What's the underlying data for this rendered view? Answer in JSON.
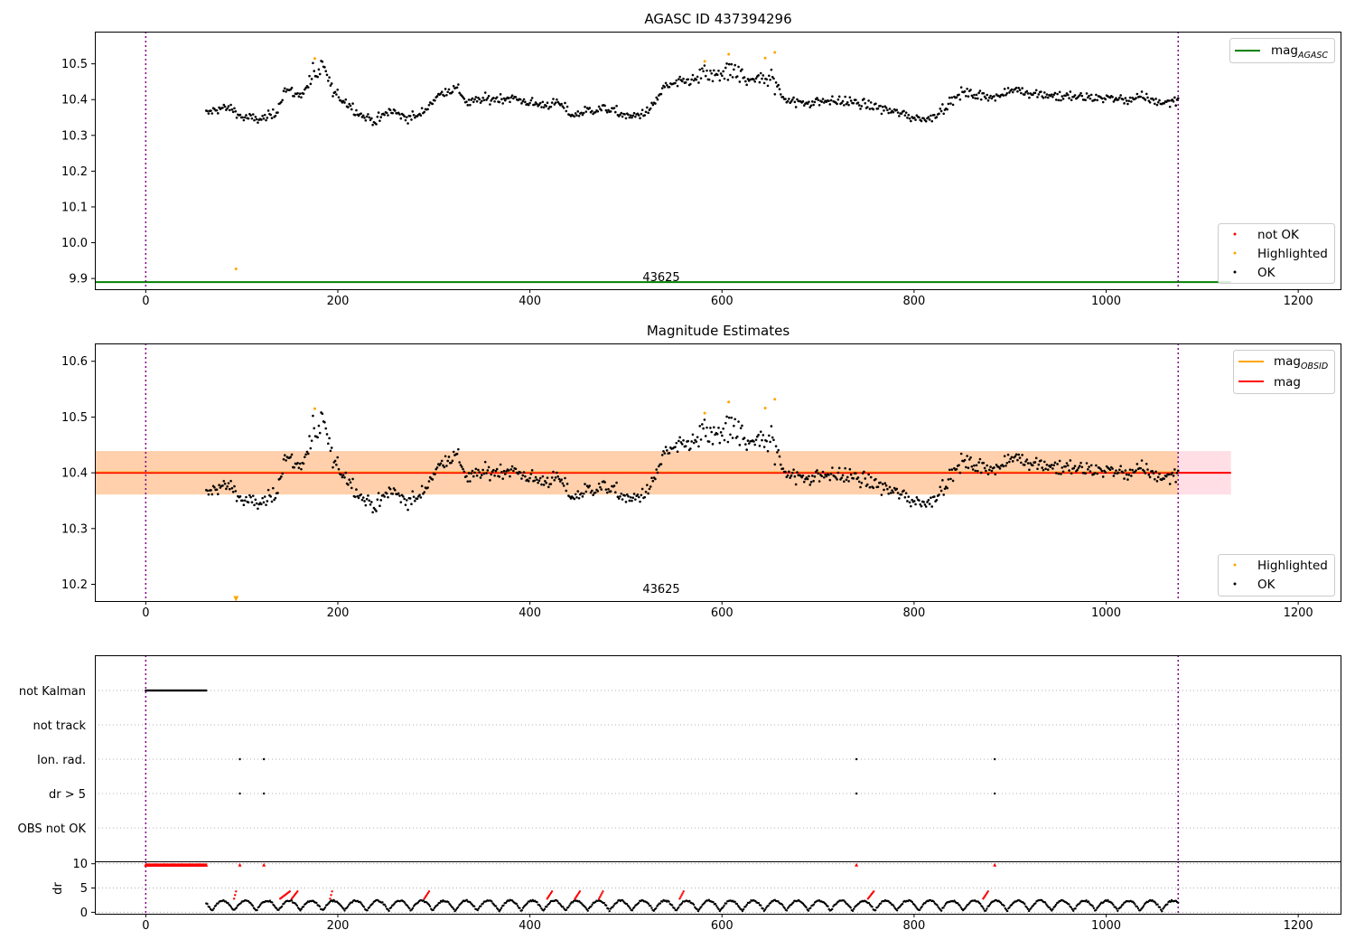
{
  "chart_data": [
    {
      "type": "scatter",
      "title": "AGASC ID 437394296",
      "xlim": [
        -53,
        1245
      ],
      "ylim": [
        9.87,
        10.59
      ],
      "xticks": [
        0,
        200,
        400,
        600,
        800,
        1000,
        1200
      ],
      "yticks": [
        9.9,
        10.0,
        10.1,
        10.2,
        10.3,
        10.4,
        10.5
      ],
      "ytick_labels": [
        "9.9",
        "10.0",
        "10.1",
        "10.2",
        "10.3",
        "10.4",
        "10.5"
      ],
      "vlines": [
        0,
        1075
      ],
      "vline_color": "#800080",
      "hline": {
        "name": "mag",
        "subscript": "AGASC",
        "y": 9.89,
        "x_range": [
          -53,
          1130
        ],
        "color": "#008000"
      },
      "obsid_label": {
        "text": "43625",
        "x": 537,
        "y": 9.9
      },
      "series": [
        {
          "name": "not OK",
          "color": "#ff0000",
          "points": []
        },
        {
          "name": "Highlighted",
          "color": "#ffa500",
          "points": [
            [
              94,
              9.927
            ],
            [
              176,
              10.515
            ],
            [
              582,
              10.507
            ],
            [
              607,
              10.527
            ],
            [
              645,
              10.516
            ],
            [
              655,
              10.532
            ]
          ]
        },
        {
          "name": "OK",
          "color": "#000000",
          "trend": [
            [
              63,
              10.36
            ],
            [
              75,
              10.375
            ],
            [
              90,
              10.375
            ],
            [
              100,
              10.35
            ],
            [
              120,
              10.345
            ],
            [
              135,
              10.36
            ],
            [
              145,
              10.43
            ],
            [
              160,
              10.41
            ],
            [
              175,
              10.46
            ],
            [
              188,
              10.475
            ],
            [
              195,
              10.42
            ],
            [
              210,
              10.39
            ],
            [
              225,
              10.355
            ],
            [
              240,
              10.34
            ],
            [
              255,
              10.37
            ],
            [
              270,
              10.35
            ],
            [
              285,
              10.355
            ],
            [
              300,
              10.4
            ],
            [
              312,
              10.425
            ],
            [
              325,
              10.43
            ],
            [
              335,
              10.39
            ],
            [
              350,
              10.4
            ],
            [
              380,
              10.405
            ],
            [
              410,
              10.385
            ],
            [
              430,
              10.39
            ],
            [
              445,
              10.355
            ],
            [
              460,
              10.37
            ],
            [
              480,
              10.375
            ],
            [
              505,
              10.35
            ],
            [
              525,
              10.37
            ],
            [
              540,
              10.435
            ],
            [
              560,
              10.45
            ],
            [
              580,
              10.46
            ],
            [
              610,
              10.47
            ],
            [
              630,
              10.455
            ],
            [
              650,
              10.455
            ],
            [
              662,
              10.41
            ],
            [
              680,
              10.39
            ],
            [
              700,
              10.395
            ],
            [
              730,
              10.395
            ],
            [
              760,
              10.38
            ],
            [
              780,
              10.365
            ],
            [
              800,
              10.35
            ],
            [
              815,
              10.345
            ],
            [
              830,
              10.375
            ],
            [
              850,
              10.42
            ],
            [
              870,
              10.41
            ],
            [
              890,
              10.41
            ],
            [
              905,
              10.43
            ],
            [
              920,
              10.42
            ],
            [
              950,
              10.41
            ],
            [
              980,
              10.405
            ],
            [
              1000,
              10.405
            ],
            [
              1020,
              10.4
            ],
            [
              1040,
              10.405
            ],
            [
              1060,
              10.39
            ],
            [
              1075,
              10.4
            ]
          ],
          "x_range": [
            63,
            1075
          ],
          "n": 830,
          "scatter": 0.021
        }
      ],
      "legends": [
        {
          "position": "upper-right",
          "entries": [
            {
              "label": "mag",
              "subscript": "AGASC",
              "kind": "line",
              "color": "#008000"
            }
          ]
        },
        {
          "position": "lower-right",
          "entries": [
            {
              "label": "not OK",
              "kind": "dot",
              "color": "#ff0000"
            },
            {
              "label": "Highlighted",
              "kind": "dot",
              "color": "#ffa500"
            },
            {
              "label": "OK",
              "kind": "dot",
              "color": "#000000"
            }
          ]
        }
      ]
    },
    {
      "type": "scatter",
      "title": "Magnitude Estimates",
      "xlim": [
        -53,
        1245
      ],
      "ylim": [
        10.17,
        10.632
      ],
      "xticks": [
        0,
        200,
        400,
        600,
        800,
        1000,
        1200
      ],
      "yticks": [
        10.2,
        10.3,
        10.4,
        10.5,
        10.6
      ],
      "ytick_labels": [
        "10.2",
        "10.3",
        "10.4",
        "10.5",
        "10.6"
      ],
      "vlines": [
        0,
        1075
      ],
      "vline_color": "#800080",
      "hline": {
        "name": "mag",
        "y": 10.4,
        "x_range": [
          -53,
          1130
        ],
        "color": "#ff0000"
      },
      "bands": [
        {
          "x_range": [
            -53,
            1130
          ],
          "y_range": [
            10.361,
            10.439
          ],
          "color": "#ffc0cb",
          "opacity": 0.5
        },
        {
          "x_range": [
            -53,
            1075
          ],
          "y_range": [
            10.361,
            10.439
          ],
          "color": "#ffa500",
          "opacity": 0.25
        }
      ],
      "obsid_line": {
        "name": "mag",
        "subscript": "OBSID",
        "y": 10.4,
        "x_range": [
          -53,
          1075
        ],
        "color": "#ffa500"
      },
      "obsid_label": {
        "text": "43625",
        "x": 537,
        "y": 10.186
      },
      "series": [
        {
          "name": "Highlighted",
          "color": "#ffa500",
          "points": [
            [
              176,
              10.515
            ],
            [
              582,
              10.507
            ],
            [
              607,
              10.527
            ],
            [
              645,
              10.516
            ],
            [
              655,
              10.532
            ]
          ],
          "clipped_marker": {
            "x": 94,
            "y": 10.174
          }
        },
        {
          "name": "OK",
          "color": "#000000",
          "same_as_panel": 0
        }
      ],
      "legends": [
        {
          "position": "upper-right",
          "entries": [
            {
              "label": "mag",
              "subscript": "OBSID",
              "kind": "line",
              "color": "#ffa500"
            },
            {
              "label": "mag",
              "kind": "line",
              "color": "#ff0000"
            }
          ]
        },
        {
          "position": "lower-right",
          "entries": [
            {
              "label": "Highlighted",
              "kind": "dot",
              "color": "#ffa500"
            },
            {
              "label": "OK",
              "kind": "dot",
              "color": "#000000"
            }
          ]
        }
      ]
    },
    {
      "type": "scatter",
      "title": "",
      "xlim": [
        -53,
        1245
      ],
      "categories": [
        "not Kalman",
        "not track",
        "Ion. rad.",
        "dr > 5",
        "OBS not OK"
      ],
      "vlines": [
        0,
        1075
      ],
      "vline_color": "#800080",
      "flags": [
        {
          "category": "not Kalman",
          "x_range": [
            0,
            63
          ],
          "n": 60
        },
        {
          "category": "not track",
          "x": []
        },
        {
          "category": "Ion. rad.",
          "x": [
            98,
            123,
            740,
            884
          ]
        },
        {
          "category": "dr > 5",
          "x": [
            98,
            123,
            740,
            884
          ]
        },
        {
          "category": "OBS not OK",
          "x": []
        }
      ]
    },
    {
      "type": "scatter",
      "title": "",
      "ylabel": "dr",
      "xlim": [
        -53,
        1245
      ],
      "ylim": [
        -0.3,
        10.5
      ],
      "xticks": [
        0,
        200,
        400,
        600,
        800,
        1000,
        1200
      ],
      "yticks": [
        0,
        5,
        10
      ],
      "vlines": [
        0,
        1075
      ],
      "vline_color": "#800080",
      "series": [
        {
          "name": "dr",
          "color": "#000000",
          "x_range": [
            63,
            1075
          ],
          "n": 900,
          "shape": "arches",
          "max": 2.8
        },
        {
          "name": "dr clipped",
          "color": "#ff0000",
          "clipped": [
            [
              0,
              63
            ],
            98,
            123,
            740,
            884
          ],
          "y": 9.8
        },
        {
          "name": "dr high",
          "color": "#ff0000",
          "segments": [
            [
              140,
              150
            ],
            [
              152,
              158
            ],
            [
              290,
              295
            ],
            [
              418,
              423
            ],
            [
              447,
              452
            ],
            [
              472,
              476
            ],
            [
              556,
              560
            ],
            [
              752,
              758
            ],
            [
              872,
              877
            ],
            [
              192,
              194
            ],
            [
              92,
              94
            ]
          ]
        }
      ]
    }
  ]
}
